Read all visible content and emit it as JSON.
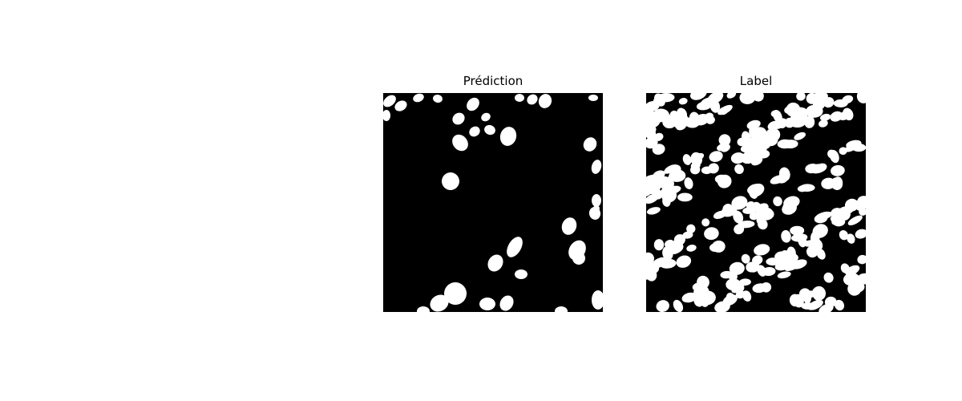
{
  "figure": {
    "panels": [
      {
        "title": "Prédiction"
      },
      {
        "title": "Label"
      }
    ]
  },
  "colors": {
    "background": "#ffffff",
    "mask_background": "#000000",
    "mask_foreground": "#ffffff"
  }
}
